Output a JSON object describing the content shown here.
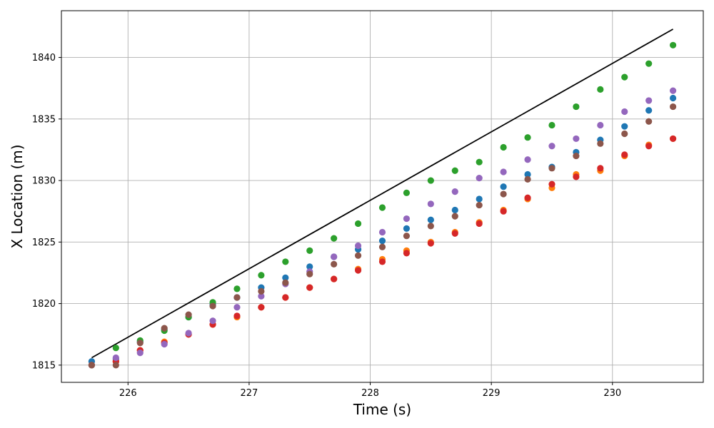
{
  "chart_data": {
    "type": "scatter",
    "title": "",
    "xlabel": "Time (s)",
    "ylabel": "X Location (m)",
    "xlim": [
      225.45,
      230.75
    ],
    "ylim": [
      1813.6,
      1843.8
    ],
    "xticks": [
      226,
      227,
      228,
      229,
      230
    ],
    "yticks": [
      1815,
      1820,
      1825,
      1830,
      1835,
      1840
    ],
    "grid": true,
    "legend": "none",
    "x": [
      225.7,
      225.9,
      226.1,
      226.3,
      226.5,
      226.7,
      226.9,
      227.1,
      227.3,
      227.5,
      227.7,
      227.9,
      228.1,
      228.3,
      228.5,
      228.7,
      228.9,
      229.1,
      229.3,
      229.5,
      229.7,
      229.9,
      230.1,
      230.3,
      230.5
    ],
    "line": {
      "color": "#000000",
      "x": [
        225.7,
        230.5
      ],
      "y": [
        1815.6,
        1842.3
      ]
    },
    "series": [
      {
        "color": "#1f77b4",
        "y": [
          1815.3,
          1815.5,
          1816.9,
          1817.9,
          1818.9,
          1819.9,
          1820.5,
          1821.3,
          1822.1,
          1823.0,
          1823.8,
          1824.4,
          1825.1,
          1826.1,
          1826.8,
          1827.6,
          1828.5,
          1829.5,
          1830.5,
          1831.1,
          1832.3,
          1833.3,
          1834.4,
          1835.7,
          1836.7
        ]
      },
      {
        "color": "#ff7f0e",
        "y": [
          1815.0,
          1815.3,
          1816.2,
          1816.9,
          1817.5,
          1818.3,
          1818.9,
          1819.7,
          1820.5,
          1821.3,
          1822.0,
          1822.8,
          1823.6,
          1824.3,
          1825.0,
          1825.8,
          1826.6,
          1827.6,
          1828.5,
          1829.4,
          1830.5,
          1830.8,
          1832.0,
          1832.9,
          1833.4
        ]
      },
      {
        "color": "#2ca02c",
        "y": [
          1815.0,
          1816.4,
          1817.0,
          1817.8,
          1818.9,
          1820.1,
          1821.2,
          1822.3,
          1823.4,
          1824.3,
          1825.3,
          1826.5,
          1827.8,
          1829.0,
          1830.0,
          1830.8,
          1831.5,
          1832.7,
          1833.5,
          1834.5,
          1836.0,
          1837.4,
          1838.4,
          1839.5,
          1841.0
        ]
      },
      {
        "color": "#d62728",
        "y": [
          1815.0,
          1815.3,
          1816.2,
          1816.8,
          1817.5,
          1818.3,
          1819.0,
          1819.7,
          1820.5,
          1821.3,
          1822.0,
          1822.7,
          1823.4,
          1824.1,
          1824.9,
          1825.7,
          1826.5,
          1827.5,
          1828.6,
          1829.7,
          1830.3,
          1831.0,
          1832.1,
          1832.8,
          1833.4
        ]
      },
      {
        "color": "#9467bd",
        "y": [
          1815.0,
          1815.6,
          1816.0,
          1816.7,
          1817.6,
          1818.6,
          1819.7,
          1820.6,
          1821.6,
          1822.6,
          1823.8,
          1824.7,
          1825.8,
          1826.9,
          1828.1,
          1829.1,
          1830.2,
          1830.7,
          1831.7,
          1832.8,
          1833.4,
          1834.5,
          1835.6,
          1836.5,
          1837.3
        ]
      },
      {
        "color": "#8c564b",
        "y": [
          1815.0,
          1815.0,
          1816.8,
          1818.0,
          1819.1,
          1819.8,
          1820.5,
          1821.0,
          1821.7,
          1822.4,
          1823.2,
          1823.9,
          1824.6,
          1825.5,
          1826.3,
          1827.1,
          1828.0,
          1828.9,
          1830.1,
          1831.0,
          1832.0,
          1833.0,
          1833.8,
          1834.8,
          1836.0
        ]
      }
    ]
  }
}
